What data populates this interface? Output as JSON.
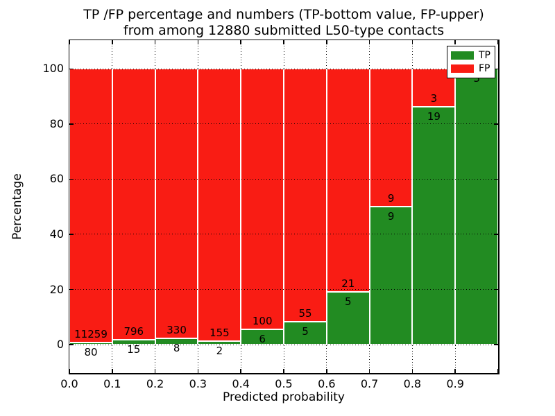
{
  "header": {
    "title_line1": "TP /FP percentage and numbers (TP-bottom value, FP-upper)",
    "title_line2": "from among 12880 submitted L50-type contacts"
  },
  "chart_data": {
    "type": "bar",
    "stacked": true,
    "normalized_to_percent": true,
    "title": "TP /FP percentage and numbers (TP-bottom value, FP-upper)\nfrom among 12880 submitted L50-type contacts",
    "total_contacts": 12880,
    "xlabel": "Predicted probability",
    "ylabel": "Percentage",
    "bin_width": 0.1,
    "x_bin_starts": [
      0.0,
      0.1,
      0.2,
      0.3,
      0.4,
      0.5,
      0.6,
      0.7,
      0.8,
      0.9
    ],
    "series": [
      {
        "name": "TP",
        "color": "#228b22",
        "counts": [
          80,
          15,
          8,
          2,
          6,
          5,
          5,
          9,
          19,
          3
        ]
      },
      {
        "name": "FP",
        "color": "#f91c14",
        "counts": [
          11259,
          796,
          330,
          155,
          100,
          55,
          21,
          9,
          3,
          0
        ]
      }
    ],
    "xtick_labels": [
      "0.0",
      "0.1",
      "0.2",
      "0.3",
      "0.4",
      "0.5",
      "0.6",
      "0.7",
      "0.8",
      "0.9"
    ],
    "yticks": [
      0,
      20,
      40,
      60,
      80,
      100
    ],
    "xlim": [
      0.0,
      1.0
    ],
    "ylim": [
      -10.3,
      110.4
    ],
    "grid": "dotted",
    "legend": {
      "position": "upper right",
      "entries": [
        {
          "label": "TP",
          "color": "#228b22"
        },
        {
          "label": "FP",
          "color": "#f91c14"
        }
      ]
    }
  }
}
